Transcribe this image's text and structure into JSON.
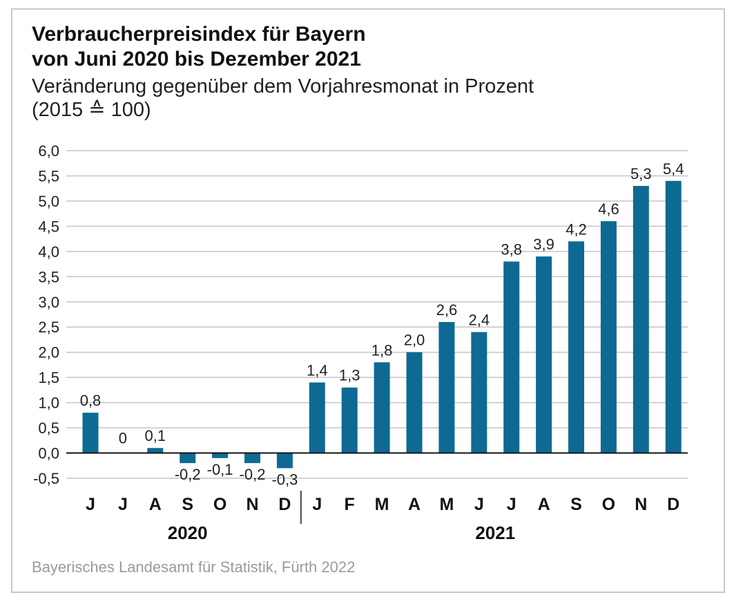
{
  "header": {
    "title_line1": "Verbraucherpreisindex für Bayern",
    "title_line2": "von Juni 2020 bis Dezember 2021",
    "subtitle_line1": "Veränderung gegenüber dem Vorjahresmonat in Prozent",
    "subtitle_line2": "(2015 ≙ 100)"
  },
  "footer": {
    "source": "Bayerisches Landesamt für Statistik, Fürth 2022"
  },
  "colors": {
    "bar": "#0e6a93",
    "grid": "#c4c4c4",
    "axis": "#111111"
  },
  "chart_data": {
    "type": "bar",
    "title": "Verbraucherpreisindex für Bayern von Juni 2020 bis Dezember 2021",
    "subtitle": "Veränderung gegenüber dem Vorjahresmonat in Prozent (2015 ≙ 100)",
    "categories": [
      "J",
      "J",
      "A",
      "S",
      "O",
      "N",
      "D",
      "J",
      "F",
      "M",
      "A",
      "M",
      "J",
      "J",
      "A",
      "S",
      "O",
      "N",
      "D"
    ],
    "values": [
      0.8,
      0,
      0.1,
      -0.2,
      -0.1,
      -0.2,
      -0.3,
      1.4,
      1.3,
      1.8,
      2.0,
      2.6,
      2.4,
      3.8,
      3.9,
      4.2,
      4.6,
      5.3,
      5.4
    ],
    "value_labels": [
      "0,8",
      "0",
      "0,1",
      "-0,2",
      "-0,1",
      "-0,2",
      "-0,3",
      "1,4",
      "1,3",
      "1,8",
      "2,0",
      "2,6",
      "2,4",
      "3,8",
      "3,9",
      "4,2",
      "4,6",
      "5,3",
      "5,4"
    ],
    "groups": [
      {
        "label": "2020",
        "count": 7
      },
      {
        "label": "2021",
        "count": 12
      }
    ],
    "ylim": [
      -0.5,
      6.0
    ],
    "yticks": [
      6.0,
      5.5,
      5.0,
      4.5,
      4.0,
      3.5,
      3.0,
      2.5,
      2.0,
      1.5,
      1.0,
      0.5,
      0.0,
      -0.5
    ],
    "ytick_labels": [
      "6,0",
      "5,5",
      "5,0",
      "4,5",
      "4,0",
      "3,5",
      "3,0",
      "2,5",
      "2,0",
      "1,5",
      "1,0",
      "0,5",
      "0,0",
      "-0,5"
    ],
    "xlabel": "",
    "ylabel": "",
    "grid": true,
    "legend": "none"
  }
}
